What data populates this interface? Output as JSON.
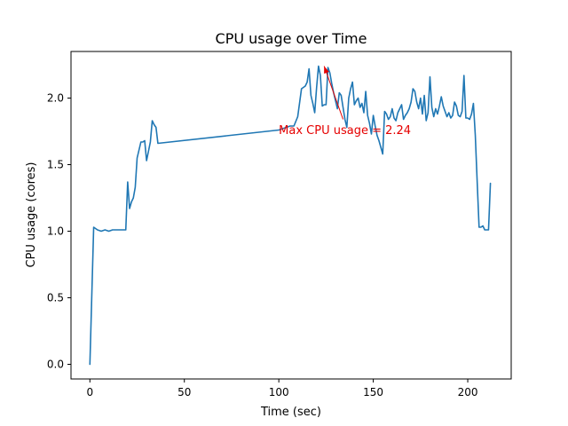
{
  "chart_data": {
    "type": "line",
    "title": "CPU usage over Time",
    "xlabel": "Time (sec)",
    "ylabel": "CPU usage (cores)",
    "xlim": [
      -10,
      223
    ],
    "ylim": [
      -0.11,
      2.35
    ],
    "xticks": [
      0,
      50,
      100,
      150,
      200
    ],
    "xtick_labels": [
      "0",
      "50",
      "100",
      "150",
      "200"
    ],
    "yticks": [
      0.0,
      0.5,
      1.0,
      1.5,
      2.0
    ],
    "ytick_labels": [
      "0.0",
      "0.5",
      "1.0",
      "1.5",
      "2.0"
    ],
    "grid": false,
    "line_color": "#1f77b4",
    "series": [
      {
        "x": [
          0,
          2,
          4,
          6,
          8,
          10,
          12,
          14,
          16,
          18,
          19,
          20,
          21,
          22,
          23,
          24,
          25,
          26,
          27,
          28,
          29,
          30,
          31,
          32,
          33,
          34,
          35,
          36,
          100,
          104,
          106,
          108,
          110,
          112,
          113,
          114,
          115,
          116,
          117,
          118,
          119,
          120,
          121,
          122,
          123,
          124,
          125,
          126,
          127,
          128,
          129,
          130,
          131,
          132,
          133,
          134,
          135,
          136,
          137,
          138,
          139,
          140,
          141,
          142,
          143,
          144,
          145,
          146,
          147,
          148,
          149,
          150,
          151,
          152,
          153,
          154,
          155,
          156,
          157,
          158,
          159,
          160,
          161,
          162,
          163,
          164,
          165,
          166,
          167,
          168,
          169,
          170,
          171,
          172,
          173,
          174,
          175,
          176,
          177,
          178,
          179,
          180,
          181,
          182,
          183,
          184,
          185,
          186,
          187,
          188,
          189,
          190,
          191,
          192,
          193,
          194,
          195,
          196,
          197,
          198,
          199,
          200,
          201,
          202,
          203,
          204,
          205,
          206,
          207,
          208,
          209,
          210,
          211,
          212
        ],
        "y": [
          0.0,
          1.03,
          1.01,
          1.0,
          1.01,
          1.0,
          1.01,
          1.01,
          1.01,
          1.01,
          1.01,
          1.37,
          1.17,
          1.22,
          1.25,
          1.33,
          1.55,
          1.61,
          1.67,
          1.67,
          1.68,
          1.53,
          1.6,
          1.67,
          1.83,
          1.8,
          1.78,
          1.66,
          1.76,
          1.78,
          1.79,
          1.79,
          1.86,
          2.07,
          2.08,
          2.09,
          2.12,
          2.22,
          2.02,
          1.96,
          1.89,
          2.08,
          2.24,
          2.17,
          1.94,
          1.95,
          1.95,
          2.23,
          2.19,
          2.11,
          2.04,
          1.98,
          1.92,
          2.04,
          2.02,
          1.93,
          1.84,
          1.78,
          2.0,
          2.07,
          2.12,
          1.95,
          1.98,
          2.0,
          1.93,
          1.96,
          1.89,
          2.05,
          1.87,
          1.81,
          1.73,
          1.87,
          1.79,
          1.72,
          1.68,
          1.63,
          1.58,
          1.9,
          1.88,
          1.84,
          1.86,
          1.92,
          1.85,
          1.83,
          1.89,
          1.92,
          1.95,
          1.84,
          1.87,
          1.89,
          1.92,
          1.97,
          2.07,
          2.05,
          1.97,
          1.92,
          2.0,
          1.88,
          2.02,
          1.83,
          1.89,
          2.16,
          1.93,
          1.86,
          1.92,
          1.88,
          1.94,
          2.01,
          1.94,
          1.9,
          1.86,
          1.89,
          1.85,
          1.87,
          1.97,
          1.94,
          1.87,
          1.86,
          1.9,
          2.17,
          1.85,
          1.85,
          1.84,
          1.88,
          1.96,
          1.72,
          1.37,
          1.03,
          1.03,
          1.04,
          1.01,
          1.01,
          1.01,
          1.36
        ]
      }
    ],
    "annotation": {
      "text": "Max CPU usage = 2.24",
      "color": "#e50000",
      "point": [
        124,
        2.24
      ],
      "text_pos": [
        100,
        1.73
      ],
      "arrow_tail": [
        134,
        1.84
      ]
    }
  }
}
